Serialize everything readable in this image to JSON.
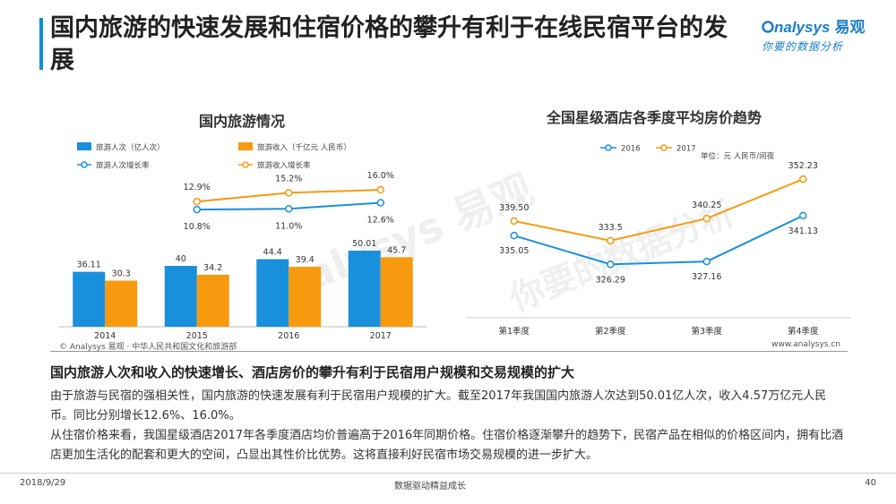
{
  "header": {
    "title": "国内旅游的快速发展和住宿价格的攀升有利于在线民宿平台的发展",
    "logo_en": "nalysys",
    "logo_cn": "易观",
    "logo_slogan": "你要的数据分析"
  },
  "watermark": {
    "text_en": "nalysys 易观",
    "text_cn": "你要的数据分析"
  },
  "colors": {
    "blue": "#1a8fdc",
    "orange": "#f79a10",
    "accent": "#0e8fd8"
  },
  "chart_data": [
    {
      "type": "bar",
      "title": "国内旅游情况",
      "categories": [
        "2014",
        "2015",
        "2016",
        "2017"
      ],
      "series": [
        {
          "name": "旅游人次（亿人次）",
          "kind": "bar",
          "color": "#1a8fdc",
          "values": [
            36.11,
            40,
            44.4,
            50.01
          ],
          "labels": [
            "36.11",
            "40",
            "44.4",
            "50.01"
          ]
        },
        {
          "name": "旅游收入（千亿元 人民币）",
          "kind": "bar",
          "color": "#f79a10",
          "values": [
            30.3,
            34.2,
            39.4,
            45.7
          ],
          "labels": [
            "30.3",
            "34.2",
            "39.4",
            "45.7"
          ]
        },
        {
          "name": "旅游人次增长率",
          "kind": "line",
          "color": "#1a8fdc",
          "values": [
            null,
            10.8,
            11.0,
            12.6
          ],
          "labels": [
            "",
            "10.8%",
            "11.0%",
            "12.6%"
          ]
        },
        {
          "name": "旅游收入增长率",
          "kind": "line",
          "color": "#f79a10",
          "values": [
            null,
            12.9,
            15.2,
            16.0
          ],
          "labels": [
            "",
            "12.9%",
            "15.2%",
            "16.0%"
          ]
        }
      ],
      "bar_ylim": [
        0,
        100
      ],
      "line_ylim": [
        -20,
        20
      ]
    },
    {
      "type": "line",
      "title": "全国星级酒店各季度平均房价趋势",
      "unit_note": "单位：元 人民币/间夜",
      "categories": [
        "第1季度",
        "第2季度",
        "第3季度",
        "第4季度"
      ],
      "series": [
        {
          "name": "2016",
          "color": "#1a8fdc",
          "values": [
            335.05,
            326.29,
            327.16,
            341.13
          ],
          "labels": [
            "335.05",
            "326.29",
            "327.16",
            "341.13"
          ]
        },
        {
          "name": "2017",
          "color": "#f79a10",
          "values": [
            339.5,
            333.5,
            340.25,
            352.23
          ],
          "labels": [
            "339.50",
            "333.5",
            "340.25",
            "352.23"
          ]
        }
      ],
      "ylim": [
        310,
        355
      ]
    }
  ],
  "sources": {
    "left": "© Analysys 易观 · 中华人民共和国文化和旅游部",
    "right": "www.analysys.cn"
  },
  "summary": {
    "headline": "国内旅游人次和收入的快速增长、酒店房价的攀升有利于民宿用户规模和交易规模的扩大",
    "para1": "由于旅游与民宿的强相关性，国内旅游的快速发展有利于民宿用户规模的扩大。截至2017年我国国内旅游人次达到50.01亿人次，收入4.57万亿元人民币。同比分别增长12.6%、16.0%。",
    "para2": "从住宿价格来看，我国星级酒店2017年各季度酒店均价普遍高于2016年同期价格。住宿价格逐渐攀升的趋势下，民宿产品在相似的价格区间内，拥有比酒店更加生活化的配套和更大的空间，凸显出其性价比优势。这将直接利好民宿市场交易规模的进一步扩大。"
  },
  "footer": {
    "date": "2018/9/29",
    "slogan": "数据驱动精益成长",
    "page": "40"
  }
}
